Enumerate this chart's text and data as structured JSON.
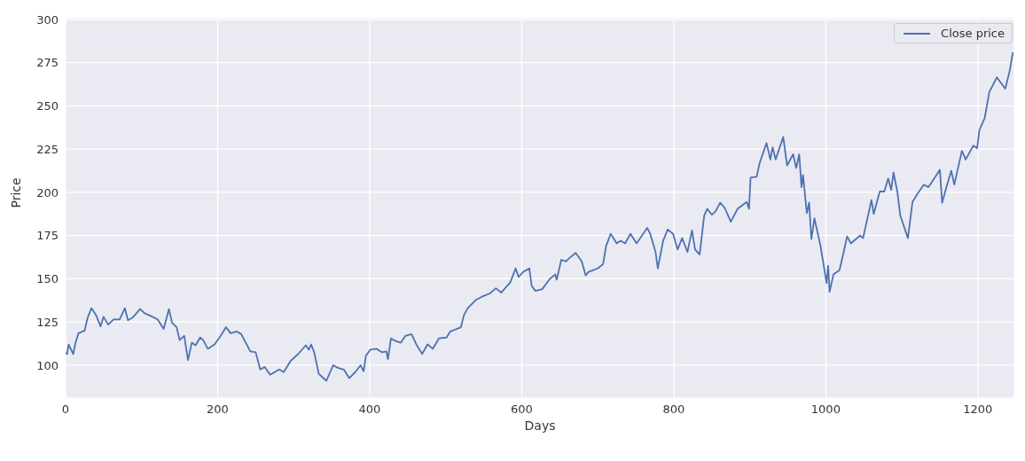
{
  "chart_data": {
    "type": "line",
    "xlabel": "Days",
    "ylabel": "Price",
    "xlim": [
      0,
      1248
    ],
    "ylim": [
      81,
      301
    ],
    "xticks": [
      0,
      200,
      400,
      600,
      800,
      1000,
      1200
    ],
    "yticks": [
      100,
      125,
      150,
      175,
      200,
      225,
      250,
      275,
      300
    ],
    "grid": true,
    "legend": "top right",
    "line_style": "solid",
    "marker": "none",
    "series": [
      {
        "name": "Close price",
        "color": "#4c72b0",
        "x": [
          0,
          2,
          4,
          10,
          13,
          17,
          25,
          29,
          34,
          40,
          46,
          50,
          56,
          63,
          71,
          78,
          82,
          88,
          98,
          104,
          112,
          121,
          129,
          136,
          140,
          146,
          150,
          156,
          161,
          166,
          171,
          177,
          181,
          187,
          196,
          204,
          211,
          217,
          225,
          231,
          237,
          243,
          250,
          256,
          262,
          269,
          281,
          287,
          296,
          306,
          316,
          320,
          323,
          327,
          333,
          343,
          352,
          358,
          366,
          373,
          381,
          388,
          392,
          395,
          401,
          409,
          416,
          422,
          424,
          428,
          434,
          441,
          447,
          455,
          462,
          469,
          476,
          483,
          491,
          501,
          506,
          520,
          524,
          529,
          539,
          547,
          558,
          566,
          573,
          585,
          592,
          596,
          602,
          610,
          613,
          618,
          627,
          637,
          644,
          646,
          652,
          658,
          664,
          671,
          679,
          684,
          688,
          700,
          707,
          711,
          717,
          725,
          730,
          736,
          743,
          751,
          759,
          765,
          769,
          776,
          779,
          786,
          792,
          799,
          805,
          811,
          818,
          824,
          828,
          834,
          840,
          844,
          850,
          855,
          861,
          867,
          875,
          884,
          896,
          899,
          901,
          909,
          913,
          922,
          927,
          930,
          934,
          944,
          949,
          957,
          961,
          965,
          968,
          970,
          975,
          978,
          981,
          985,
          993,
          1001,
          1003,
          1005,
          1010,
          1018,
          1024,
          1028,
          1033,
          1045,
          1049,
          1056,
          1060,
          1063,
          1071,
          1077,
          1082,
          1086,
          1089,
          1094,
          1098,
          1108,
          1114,
          1121,
          1129,
          1135,
          1144,
          1150,
          1153,
          1158,
          1165,
          1169,
          1179,
          1184,
          1194,
          1199,
          1202,
          1209,
          1215,
          1225,
          1236,
          1242,
          1246
        ],
        "values": [
          107,
          106.5,
          112,
          106.5,
          113,
          118.5,
          120,
          127.5,
          133,
          129,
          122.5,
          128,
          123.5,
          126.5,
          126.5,
          133,
          126,
          127.5,
          132.5,
          130,
          128.5,
          126.5,
          121,
          132.5,
          124.5,
          122,
          114.5,
          117,
          103,
          113,
          111.5,
          116,
          114.5,
          109.5,
          112,
          117,
          122,
          118.5,
          119.5,
          118,
          113,
          108,
          107.5,
          97.5,
          99,
          94.5,
          97.5,
          96,
          102.5,
          106.5,
          111.5,
          109,
          112,
          107.5,
          95,
          91,
          100,
          98.5,
          97.5,
          92.5,
          96,
          100,
          96.5,
          105.5,
          109,
          109.5,
          107.5,
          108,
          103.5,
          115.5,
          114,
          113,
          117,
          118,
          111.5,
          106.5,
          112,
          109.5,
          115.5,
          116,
          119.5,
          122,
          129,
          133,
          137.5,
          139.5,
          141.5,
          144.5,
          142,
          148,
          156,
          151,
          154,
          156,
          146,
          143,
          144,
          150,
          152.5,
          149.5,
          161,
          160,
          162.5,
          165,
          160,
          152,
          154,
          156,
          158.5,
          169,
          176,
          170.5,
          172,
          170.5,
          176,
          170.5,
          175.5,
          179.5,
          176,
          165.5,
          156,
          172,
          178.5,
          176,
          167,
          173.5,
          165.5,
          178,
          167,
          164,
          186.5,
          190.5,
          187,
          189,
          194,
          191,
          183,
          190.5,
          194.5,
          190.5,
          208.5,
          209,
          217,
          228.5,
          219,
          226,
          219,
          232,
          215.5,
          222,
          214,
          222,
          203,
          210,
          188,
          194,
          173,
          185,
          169,
          147.5,
          157.5,
          142.5,
          152.5,
          155,
          166.5,
          174.5,
          170.5,
          175,
          173.5,
          187.5,
          195.5,
          187.5,
          200.5,
          200.5,
          208,
          201.5,
          211.5,
          200.5,
          186.5,
          173.5,
          194.5,
          199.5,
          204.5,
          203,
          209,
          213,
          194,
          202,
          212.5,
          204.5,
          224,
          219,
          227,
          225.5,
          236,
          243,
          258,
          266.5,
          260,
          270.5,
          281
        ]
      }
    ]
  }
}
